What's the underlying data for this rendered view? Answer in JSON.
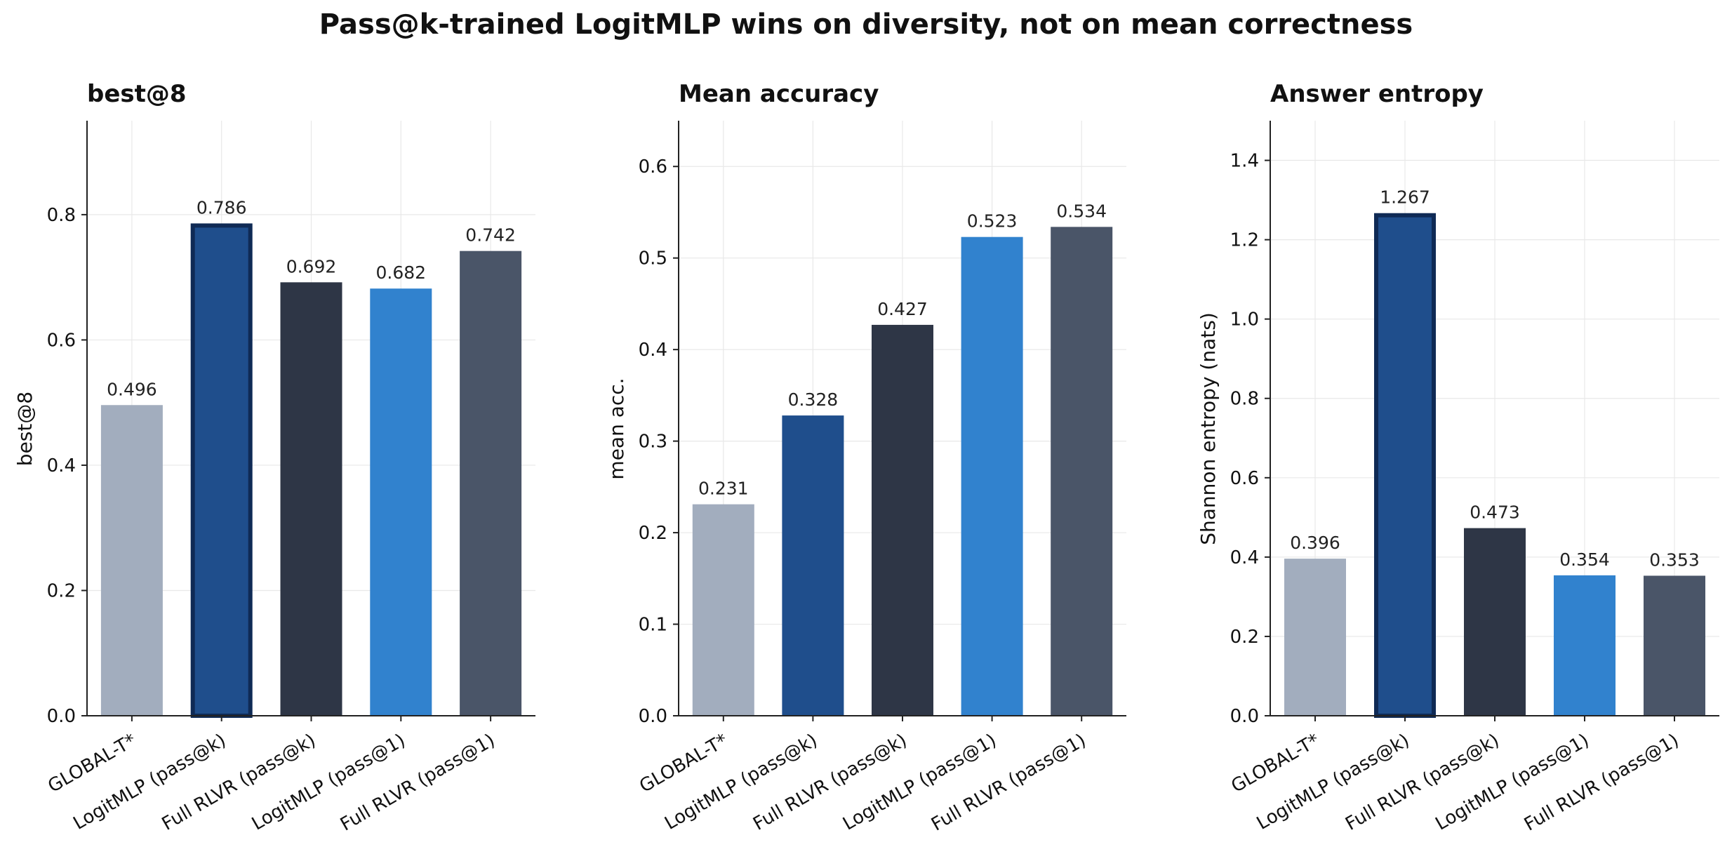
{
  "title": "Pass@k-trained LogitMLP wins on diversity, not on mean correctness",
  "colors": {
    "GLOBAL-T*": "#a2adbe",
    "LogitMLP (pass@k)": "#1f4e8c",
    "Full RLVR (pass@k)": "#2e3646",
    "LogitMLP (pass@1)": "#3182ce",
    "Full RLVR (pass@1)": "#4a5568",
    "highlight_edge": "#0f2a55",
    "grid": "#e8e8e8",
    "axis": "#222222"
  },
  "chart_data": [
    {
      "type": "bar",
      "title": "best@8",
      "xlabel": "",
      "ylabel": "best@8",
      "categories": [
        "GLOBAL-T*",
        "LogitMLP (pass@k)",
        "Full RLVR (pass@k)",
        "LogitMLP (pass@1)",
        "Full RLVR (pass@1)"
      ],
      "values": [
        0.496,
        0.786,
        0.692,
        0.682,
        0.742
      ],
      "value_labels": [
        "0.496",
        "0.786",
        "0.692",
        "0.682",
        "0.742"
      ],
      "highlight": "LogitMLP (pass@k)",
      "ylim": [
        0,
        0.95
      ],
      "yticks": [
        0.0,
        0.2,
        0.4,
        0.6,
        0.8
      ],
      "ytick_labels": [
        "0.0",
        "0.2",
        "0.4",
        "0.6",
        "0.8"
      ],
      "grid": true
    },
    {
      "type": "bar",
      "title": "Mean accuracy",
      "xlabel": "",
      "ylabel": "mean acc.",
      "categories": [
        "GLOBAL-T*",
        "LogitMLP (pass@k)",
        "Full RLVR (pass@k)",
        "LogitMLP (pass@1)",
        "Full RLVR (pass@1)"
      ],
      "values": [
        0.231,
        0.328,
        0.427,
        0.523,
        0.534
      ],
      "value_labels": [
        "0.231",
        "0.328",
        "0.427",
        "0.523",
        "0.534"
      ],
      "highlight": "",
      "ylim": [
        0,
        0.65
      ],
      "yticks": [
        0.0,
        0.1,
        0.2,
        0.3,
        0.4,
        0.5,
        0.6
      ],
      "ytick_labels": [
        "0.0",
        "0.1",
        "0.2",
        "0.3",
        "0.4",
        "0.5",
        "0.6"
      ],
      "grid": true
    },
    {
      "type": "bar",
      "title": "Answer entropy",
      "xlabel": "",
      "ylabel": "Shannon entropy (nats)",
      "categories": [
        "GLOBAL-T*",
        "LogitMLP (pass@k)",
        "Full RLVR (pass@k)",
        "LogitMLP (pass@1)",
        "Full RLVR (pass@1)"
      ],
      "values": [
        0.396,
        1.267,
        0.473,
        0.354,
        0.353
      ],
      "value_labels": [
        "0.396",
        "1.267",
        "0.473",
        "0.354",
        "0.353"
      ],
      "highlight": "LogitMLP (pass@k)",
      "ylim": [
        0,
        1.5
      ],
      "yticks": [
        0.0,
        0.2,
        0.4,
        0.6,
        0.8,
        1.0,
        1.2,
        1.4
      ],
      "ytick_labels": [
        "0.0",
        "0.2",
        "0.4",
        "0.6",
        "0.8",
        "1.0",
        "1.2",
        "1.4"
      ],
      "grid": true
    }
  ]
}
